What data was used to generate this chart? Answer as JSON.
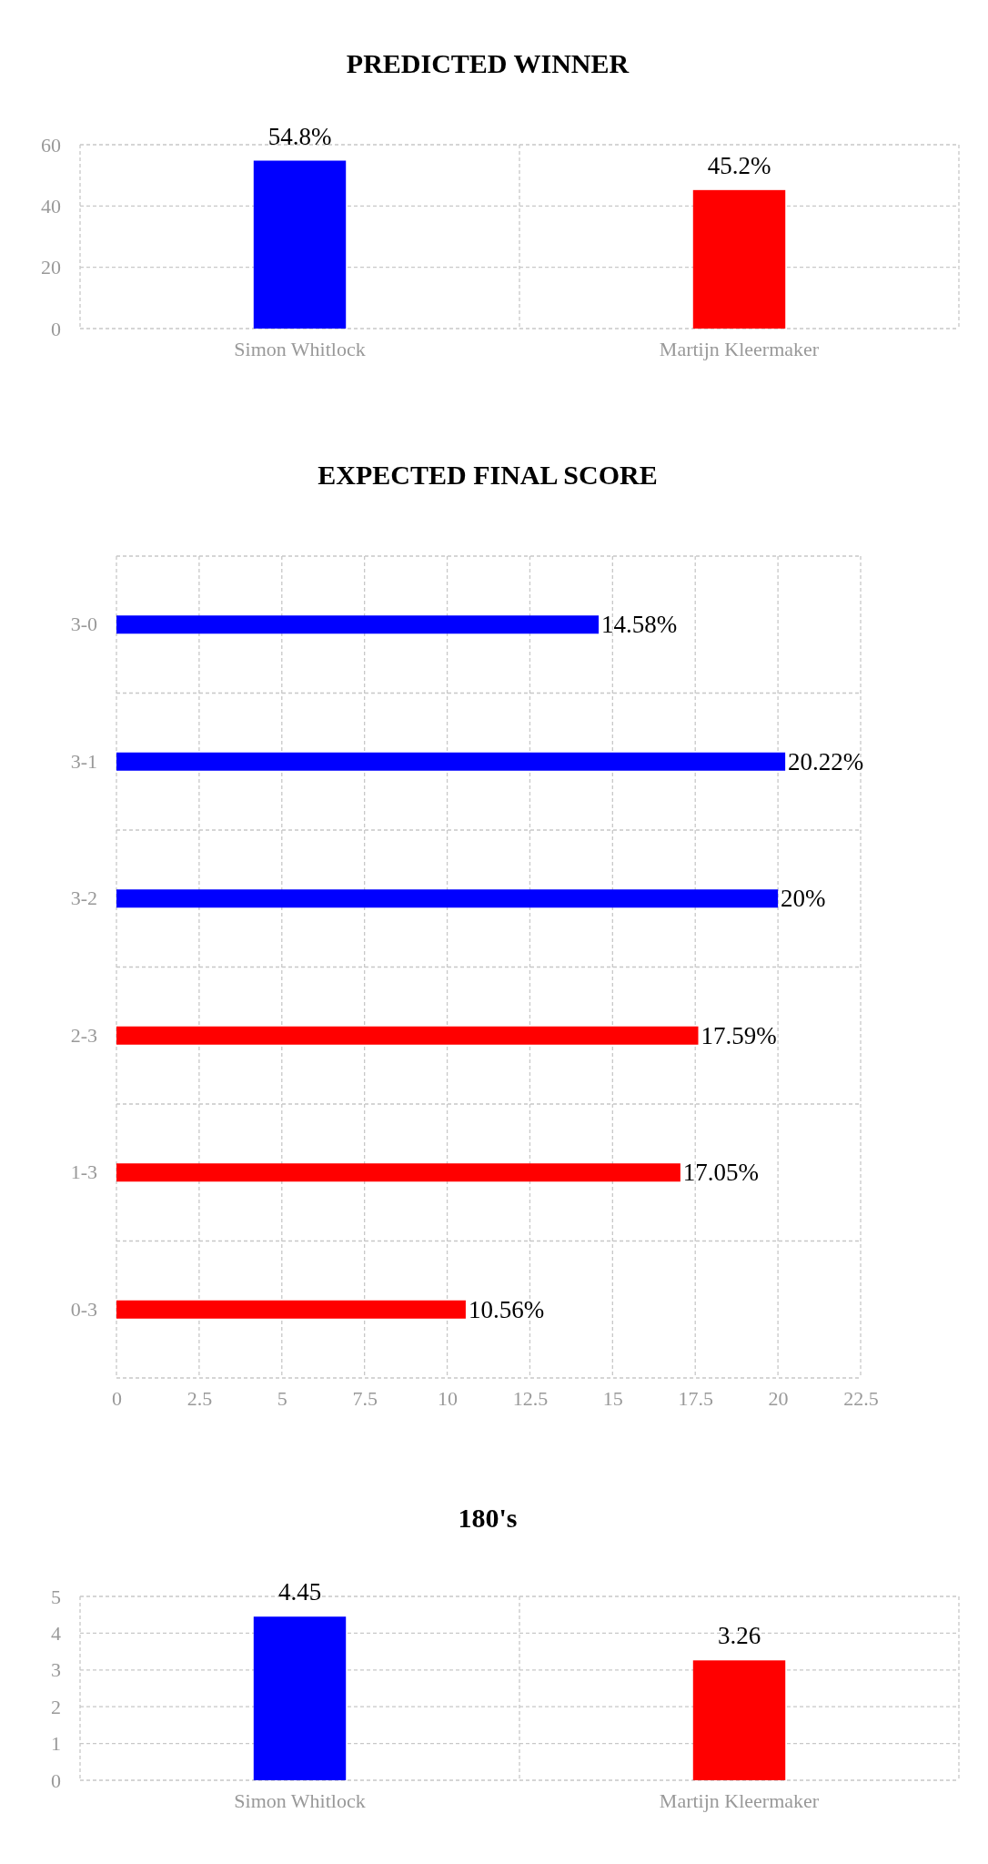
{
  "chart_data": [
    {
      "type": "bar",
      "title": "PREDICTED WINNER",
      "categories": [
        "Simon Whitlock",
        "Martijn Kleermaker"
      ],
      "values": [
        54.8,
        45.2
      ],
      "colors": [
        "#0000ff",
        "#ff0000"
      ],
      "value_labels": [
        "54.8%",
        "45.2%"
      ],
      "ylim": [
        0,
        60
      ],
      "yticks": [
        0,
        20,
        40,
        60
      ],
      "grid": true
    },
    {
      "type": "bar",
      "orientation": "horizontal",
      "title": "EXPECTED FINAL SCORE",
      "categories": [
        "3-0",
        "3-1",
        "3-2",
        "2-3",
        "1-3",
        "0-3"
      ],
      "values": [
        14.58,
        20.22,
        20,
        17.59,
        17.05,
        10.56
      ],
      "colors": [
        "#0000ff",
        "#0000ff",
        "#0000ff",
        "#ff0000",
        "#ff0000",
        "#ff0000"
      ],
      "value_labels": [
        "14.58%",
        "20.22%",
        "20%",
        "17.59%",
        "17.05%",
        "10.56%"
      ],
      "xlim": [
        0,
        22.5
      ],
      "xticks": [
        0,
        2.5,
        5,
        7.5,
        10,
        12.5,
        15,
        17.5,
        20,
        22.5
      ],
      "grid": true
    },
    {
      "type": "bar",
      "title": "180's",
      "categories": [
        "Simon Whitlock",
        "Martijn Kleermaker"
      ],
      "values": [
        4.45,
        3.26
      ],
      "colors": [
        "#0000ff",
        "#ff0000"
      ],
      "data_labels": true,
      "ylim": [
        0,
        5
      ],
      "yticks": [
        0,
        1,
        2,
        3,
        4,
        5
      ],
      "grid": true
    }
  ]
}
